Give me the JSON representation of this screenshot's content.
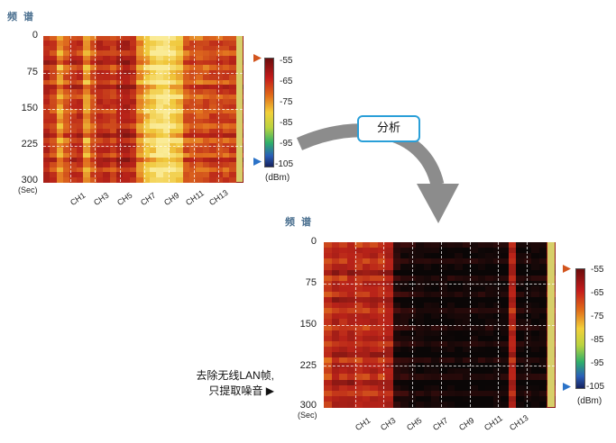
{
  "analyze_button": "分析",
  "annotation": {
    "line1": "去除无线LAN帧,",
    "line2": "只提取噪音 ▶"
  },
  "chart_data": [
    {
      "type": "heatmap",
      "title": "频 谱",
      "ylabel": "(Sec)",
      "y_ticks": [
        "0",
        "75",
        "150",
        "225",
        "300"
      ],
      "ylim": [
        0,
        300
      ],
      "x_ticks": [
        "CH1",
        "CH3",
        "CH5",
        "CH7",
        "CH9",
        "CH11",
        "CH13"
      ],
      "colorbar": {
        "ticks": [
          "-55",
          "-65",
          "-75",
          "-85",
          "-95",
          "-105"
        ],
        "unit": "(dBm)",
        "range": [
          -105,
          -55
        ]
      },
      "column_levels_dBm": [
        -78,
        -75,
        -66,
        -72,
        -76,
        -77,
        -66,
        -73,
        -78,
        -77,
        -75,
        -79,
        -80,
        -78,
        -67,
        -63,
        -60,
        -57,
        -57,
        -60,
        -62,
        -72,
        -73,
        -72,
        -73,
        -74,
        -74,
        -74,
        -75,
        -85
      ],
      "grid": true
    },
    {
      "type": "heatmap",
      "title": "频 谱",
      "ylabel": "(Sec)",
      "y_ticks": [
        "0",
        "75",
        "150",
        "225",
        "300"
      ],
      "ylim": [
        0,
        300
      ],
      "x_ticks": [
        "CH1",
        "CH3",
        "CH5",
        "CH7",
        "CH9",
        "CH11",
        "CH13"
      ],
      "colorbar": {
        "ticks": [
          "-55",
          "-65",
          "-75",
          "-85",
          "-95",
          "-105"
        ],
        "unit": "(dBm)",
        "range": [
          -105,
          -55
        ]
      },
      "column_levels_dBm": [
        -75,
        -80,
        -78,
        -80,
        -77,
        -78,
        -79,
        -78,
        -80,
        -100,
        -102,
        -103,
        -104,
        -104,
        -104,
        -104,
        -104,
        -104,
        -104,
        -104,
        -104,
        -104,
        -104,
        -104,
        -80,
        -104,
        -104,
        -104,
        -104,
        -85
      ],
      "grid": true
    }
  ]
}
